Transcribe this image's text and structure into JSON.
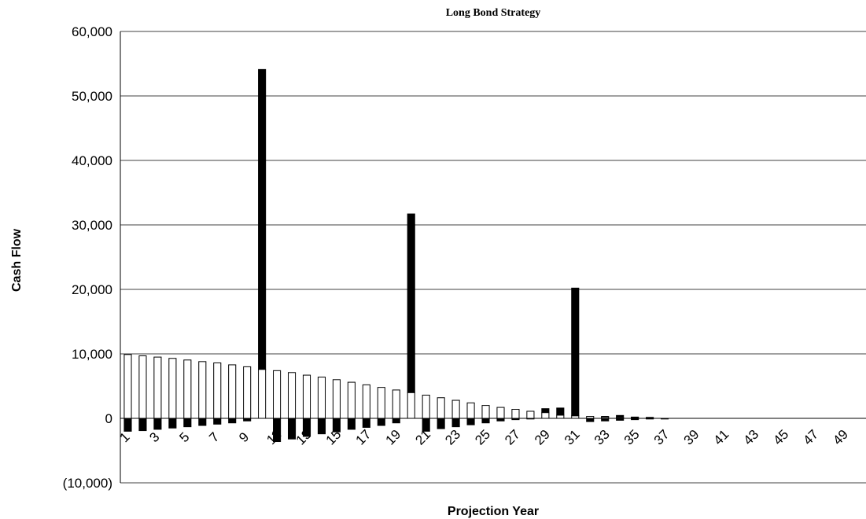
{
  "chart_data": {
    "type": "bar",
    "title": "Long Bond Strategy",
    "xlabel": "Projection Year",
    "ylabel": "Cash Flow",
    "ylim": [
      -10000,
      60000
    ],
    "yticks": [
      60000,
      50000,
      40000,
      30000,
      20000,
      10000,
      0,
      -10000
    ],
    "ytick_labels": [
      "60,000",
      "50,000",
      "40,000",
      "30,000",
      "20,000",
      "10,000",
      "0",
      "(10,000)"
    ],
    "xtick_labels": [
      "1",
      "3",
      "5",
      "7",
      "9",
      "11",
      "13",
      "15",
      "17",
      "19",
      "21",
      "23",
      "25",
      "27",
      "29",
      "31",
      "33",
      "35",
      "37",
      "39",
      "41",
      "43",
      "45",
      "47",
      "49"
    ],
    "grid": true,
    "categories": [
      1,
      2,
      3,
      4,
      5,
      6,
      7,
      8,
      9,
      10,
      11,
      12,
      13,
      14,
      15,
      16,
      17,
      18,
      19,
      20,
      21,
      22,
      23,
      24,
      25,
      26,
      27,
      28,
      29,
      30,
      31,
      32,
      33,
      34,
      35,
      36,
      37,
      38,
      39,
      40,
      41,
      42,
      43,
      44,
      45,
      46,
      47,
      48,
      49,
      50
    ],
    "series": [
      {
        "fill": "#ffffff",
        "values": [
          9900,
          9700,
          9500,
          9300,
          9050,
          8800,
          8600,
          8300,
          8000,
          7600,
          7400,
          7100,
          6700,
          6400,
          6000,
          5600,
          5200,
          4800,
          4400,
          4000,
          3600,
          3200,
          2800,
          2400,
          2000,
          1700,
          1400,
          1100,
          900,
          500,
          400,
          300,
          200,
          150,
          100,
          50,
          0,
          0,
          0,
          0,
          0,
          0,
          0,
          0,
          0,
          0,
          0,
          0,
          0,
          0
        ]
      },
      {
        "fill": "#000000",
        "pos_values": [
          0,
          0,
          0,
          0,
          0,
          0,
          0,
          0,
          0,
          46500,
          0,
          0,
          0,
          0,
          0,
          0,
          0,
          0,
          0,
          27700,
          0,
          0,
          0,
          0,
          0,
          0,
          0,
          0,
          600,
          1100,
          19800,
          0,
          100,
          300,
          100,
          100,
          0,
          0,
          0,
          0,
          0,
          0,
          0,
          0,
          0,
          0,
          0,
          0,
          0,
          0
        ],
        "neg_values": [
          -2000,
          -1900,
          -1700,
          -1500,
          -1300,
          -1100,
          -900,
          -700,
          -400,
          0,
          -3600,
          -3200,
          -2800,
          -2400,
          -2100,
          -1700,
          -1400,
          -1100,
          -700,
          0,
          -2000,
          -1600,
          -1300,
          -1000,
          -700,
          -400,
          -200,
          -100,
          0,
          0,
          0,
          -500,
          -400,
          -300,
          -200,
          -100,
          -100,
          0,
          0,
          0,
          0,
          0,
          0,
          0,
          0,
          0,
          0,
          0,
          0,
          0
        ]
      }
    ]
  }
}
